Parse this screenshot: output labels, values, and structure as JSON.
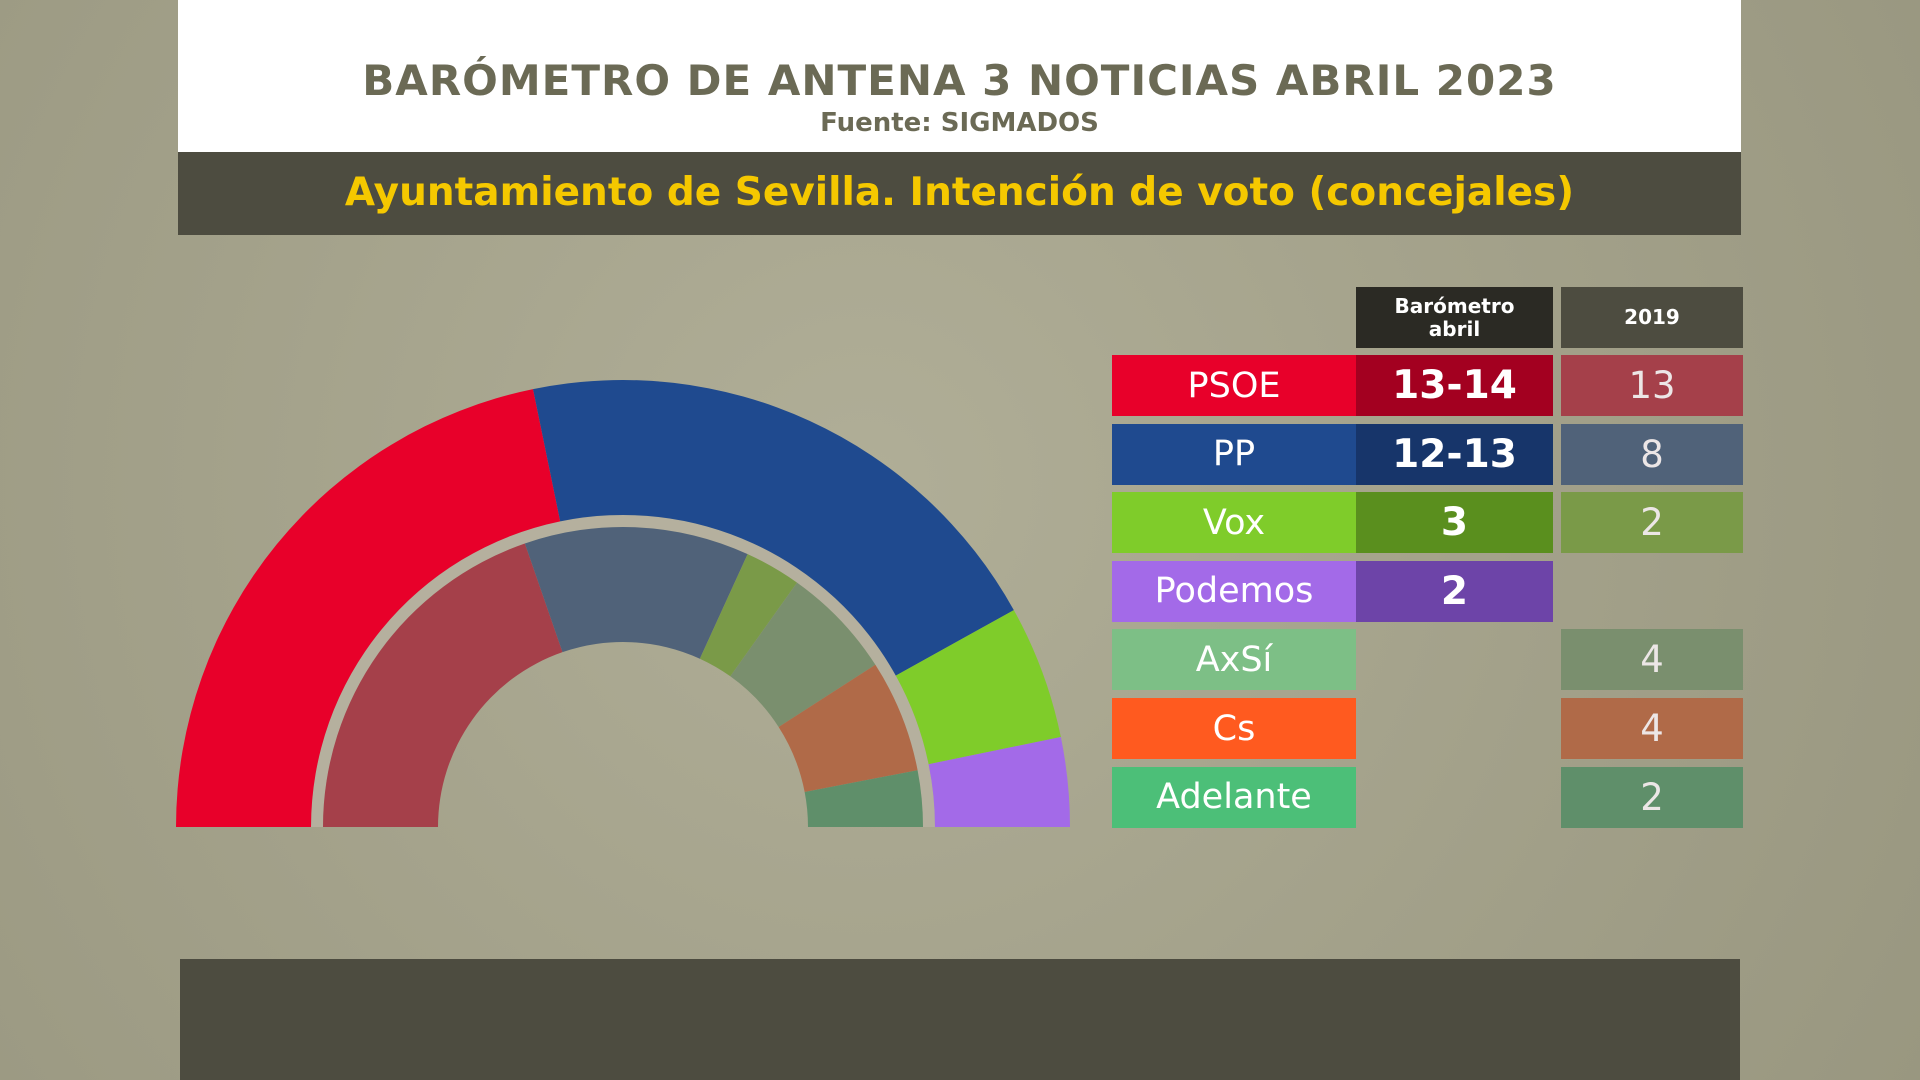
{
  "chart_data": {
    "type": "hemicycle",
    "title": "BARÓMETRO DE ANTENA 3 NOTICIAS ABRIL 2023",
    "subtitle": "Fuente: SIGMADOS",
    "heading": "Ayuntamiento de Sevilla. Intención de voto (concejales)",
    "categories": [
      "PSOE",
      "PP",
      "Vox",
      "Podemos",
      "AxSí",
      "Cs",
      "Adelante"
    ],
    "colors": [
      "#e8002a",
      "#1f4a8f",
      "#7fcc2a",
      "#a36ae8",
      "#7dbf86",
      "#ff5a1f",
      "#4cbf78"
    ],
    "series": [
      {
        "name": "Barómetro abril",
        "values": [
          13.5,
          12.5,
          3,
          2,
          null,
          null,
          null
        ],
        "value_labels": [
          "13-14",
          "12-13",
          "3",
          "2",
          null,
          null,
          null
        ],
        "colors": [
          "#a30020",
          "#17356a",
          "#5a8f1e",
          "#6d44a8",
          null,
          null,
          null
        ]
      },
      {
        "name": "2019",
        "values": [
          13,
          8,
          2,
          null,
          4,
          4,
          2
        ],
        "colors": [
          "#a5404a",
          "#506279",
          "#7a9a48",
          null,
          "#7a8f6e",
          "#b06a48",
          "#5f8f6a"
        ]
      }
    ]
  }
}
